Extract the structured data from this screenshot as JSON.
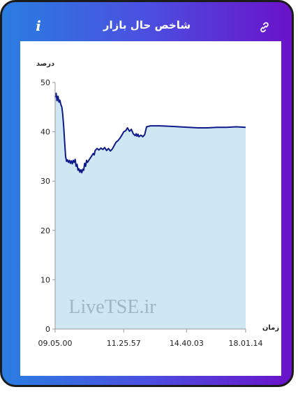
{
  "header": {
    "title": "شاخص حال بازار",
    "info_icon": "info-icon",
    "link_icon": "link-icon"
  },
  "watermark": "LiveTSE.ir",
  "colors": {
    "frame_start": "#2a7de1",
    "frame_end": "#6a12c9",
    "line": "#0f1a8a",
    "area": "#cfe7f2"
  },
  "chart_data": {
    "type": "area",
    "title": "",
    "ylabel": "درصد",
    "xlabel": "زمان",
    "ylim": [
      0,
      50
    ],
    "y_ticks": [
      0,
      10,
      20,
      30,
      40,
      50
    ],
    "x_tick_labels": [
      "09.05.00",
      "11.25.57",
      "14.40.03",
      "18.01.14"
    ],
    "x_tick_positions": [
      0,
      0.36,
      0.69,
      1
    ],
    "grid": false,
    "series": [
      {
        "points": [
          [
            0.0,
            47.0
          ],
          [
            0.005,
            47.8
          ],
          [
            0.01,
            46.3
          ],
          [
            0.015,
            47.2
          ],
          [
            0.02,
            46.0
          ],
          [
            0.025,
            46.4
          ],
          [
            0.03,
            45.5
          ],
          [
            0.035,
            45.0
          ],
          [
            0.04,
            43.5
          ],
          [
            0.045,
            41.0
          ],
          [
            0.05,
            38.0
          ],
          [
            0.055,
            35.0
          ],
          [
            0.06,
            34.0
          ],
          [
            0.065,
            34.3
          ],
          [
            0.07,
            33.8
          ],
          [
            0.075,
            34.2
          ],
          [
            0.08,
            33.6
          ],
          [
            0.085,
            34.1
          ],
          [
            0.09,
            33.5
          ],
          [
            0.095,
            34.2
          ],
          [
            0.1,
            33.8
          ],
          [
            0.105,
            34.4
          ],
          [
            0.11,
            33.0
          ],
          [
            0.115,
            33.4
          ],
          [
            0.12,
            32.2
          ],
          [
            0.125,
            32.5
          ],
          [
            0.13,
            31.8
          ],
          [
            0.135,
            32.3
          ],
          [
            0.14,
            31.7
          ],
          [
            0.145,
            32.4
          ],
          [
            0.15,
            32.2
          ],
          [
            0.155,
            33.6
          ],
          [
            0.16,
            33.0
          ],
          [
            0.165,
            34.2
          ],
          [
            0.17,
            33.8
          ],
          [
            0.18,
            34.4
          ],
          [
            0.19,
            35.0
          ],
          [
            0.2,
            35.6
          ],
          [
            0.205,
            35.3
          ],
          [
            0.21,
            36.2
          ],
          [
            0.22,
            36.6
          ],
          [
            0.23,
            36.3
          ],
          [
            0.24,
            36.7
          ],
          [
            0.25,
            36.4
          ],
          [
            0.26,
            36.8
          ],
          [
            0.27,
            36.2
          ],
          [
            0.28,
            36.6
          ],
          [
            0.29,
            36.1
          ],
          [
            0.3,
            36.5
          ],
          [
            0.31,
            37.2
          ],
          [
            0.32,
            37.9
          ],
          [
            0.33,
            38.2
          ],
          [
            0.34,
            38.7
          ],
          [
            0.35,
            39.3
          ],
          [
            0.36,
            40.0
          ],
          [
            0.37,
            40.2
          ],
          [
            0.38,
            40.8
          ],
          [
            0.39,
            40.1
          ],
          [
            0.4,
            40.5
          ],
          [
            0.41,
            39.6
          ],
          [
            0.42,
            39.2
          ],
          [
            0.425,
            39.6
          ],
          [
            0.43,
            39.1
          ],
          [
            0.435,
            39.5
          ],
          [
            0.44,
            39.0
          ],
          [
            0.45,
            39.3
          ],
          [
            0.46,
            39.0
          ],
          [
            0.47,
            39.4
          ],
          [
            0.48,
            41.0
          ],
          [
            0.5,
            41.2
          ],
          [
            0.55,
            41.2
          ],
          [
            0.6,
            41.1
          ],
          [
            0.65,
            41.0
          ],
          [
            0.7,
            40.9
          ],
          [
            0.75,
            40.8
          ],
          [
            0.8,
            40.8
          ],
          [
            0.85,
            40.9
          ],
          [
            0.9,
            40.9
          ],
          [
            0.95,
            41.0
          ],
          [
            1.0,
            40.9
          ]
        ]
      }
    ]
  }
}
